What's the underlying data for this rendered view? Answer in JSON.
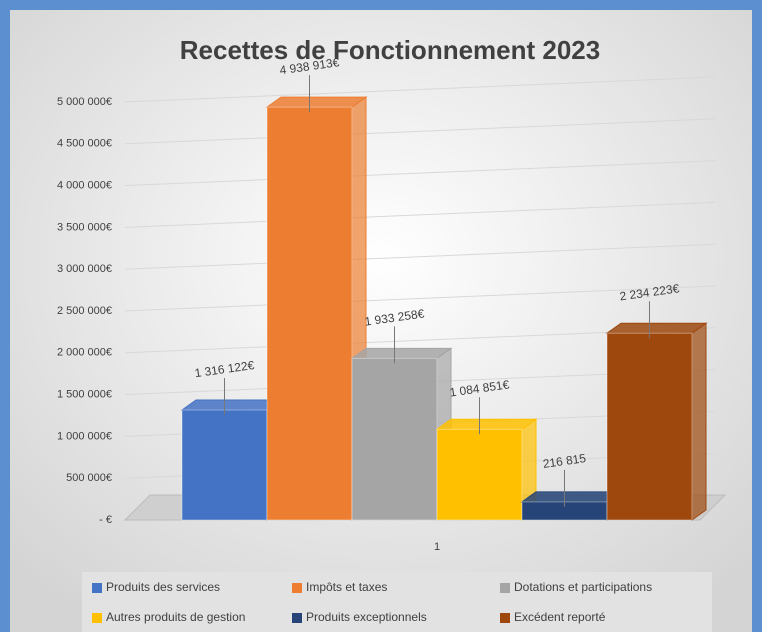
{
  "chart_data": {
    "type": "bar3d",
    "title": "Recettes de Fonctionnement 2023",
    "categories": [
      "1"
    ],
    "series": [
      {
        "name": "Produits des services",
        "color": "#4472c4",
        "values": [
          1316122
        ],
        "value_labels": [
          "1 316 122€"
        ]
      },
      {
        "name": "Impôts et taxes",
        "color": "#ed7d31",
        "values": [
          4938913
        ],
        "value_labels": [
          "4 938 913€"
        ]
      },
      {
        "name": "Dotations et participations",
        "color": "#a5a5a5",
        "values": [
          1933258
        ],
        "value_labels": [
          "1 933 258€"
        ]
      },
      {
        "name": "Autres produits de gestion",
        "color": "#ffc000",
        "values": [
          1084851
        ],
        "value_labels": [
          "1 084 851€"
        ]
      },
      {
        "name": "Produits exceptionnels",
        "color": "#264478",
        "values": [
          216815
        ],
        "value_labels": [
          "216 815"
        ]
      },
      {
        "name": "Excédent reporté",
        "color": "#9e480e",
        "values": [
          2234223
        ],
        "value_labels": [
          "2 234 223€"
        ]
      }
    ],
    "ylim": [
      0,
      5000000
    ],
    "yticks": [
      {
        "value": 0,
        "label": "- €"
      },
      {
        "value": 500000,
        "label": "500 000€"
      },
      {
        "value": 1000000,
        "label": "1 000 000€"
      },
      {
        "value": 1500000,
        "label": "1 500 000€"
      },
      {
        "value": 2000000,
        "label": "2 000 000€"
      },
      {
        "value": 2500000,
        "label": "2 500 000€"
      },
      {
        "value": 3000000,
        "label": "3 000 000€"
      },
      {
        "value": 3500000,
        "label": "3 500 000€"
      },
      {
        "value": 4000000,
        "label": "4 000 000€"
      },
      {
        "value": 4500000,
        "label": "4 500 000€"
      },
      {
        "value": 5000000,
        "label": "5 000 000€"
      }
    ],
    "grid": true
  }
}
